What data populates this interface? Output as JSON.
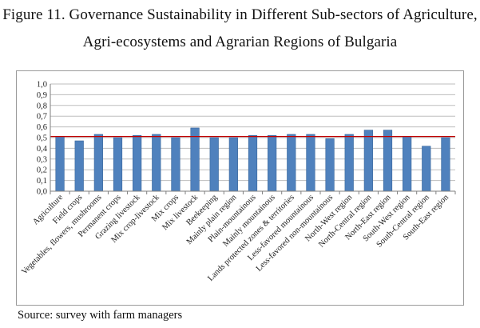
{
  "figure": {
    "title_line1": "Figure 11. Governance Sustainability in Different Sub-sectors of Agriculture,",
    "title_line2": "Agri-ecosystems and Agrarian Regions of Bulgaria",
    "source": "Source: survey with farm managers"
  },
  "chart_data": {
    "type": "bar",
    "title": "",
    "xlabel": "",
    "ylabel": "",
    "ylim": [
      0,
      1.0
    ],
    "yticks": [
      "0,0",
      "0,1",
      "0,2",
      "0,3",
      "0,4",
      "0,5",
      "0,6",
      "0,7",
      "0,8",
      "0,9",
      "1,0"
    ],
    "grid": true,
    "legend": "none",
    "bar_color": "#4f81bd",
    "reference_line": {
      "value": 0.51,
      "color": "#c00000"
    },
    "categories": [
      "Agriculture",
      "Field crops",
      "Vegetables, flowers, mushrooms",
      "Permanent crops",
      "Grazing livestock",
      "Mix crop-livestock",
      "Mix crops",
      "Mix livestock",
      "Beekeeping",
      "Mainly plain region",
      "Plain-mountainous",
      "Mainly mountainous",
      "Lands protected zones & territories",
      "Less-favored mountainous",
      "Less-favored non-mountainous",
      "North-West region",
      "North-Central region",
      "North-East region",
      "South-West region",
      "South-Central region",
      "South-East region"
    ],
    "values": [
      0.51,
      0.47,
      0.53,
      0.5,
      0.52,
      0.53,
      0.5,
      0.59,
      0.5,
      0.5,
      0.52,
      0.52,
      0.53,
      0.53,
      0.49,
      0.53,
      0.57,
      0.57,
      0.51,
      0.42,
      0.5
    ]
  }
}
